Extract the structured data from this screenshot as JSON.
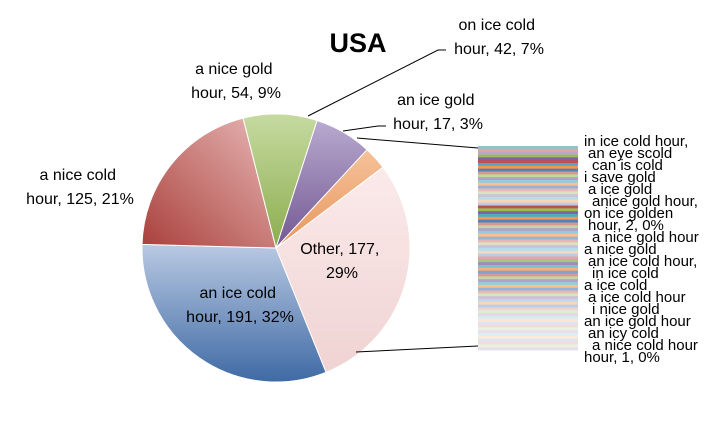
{
  "chart_data": {
    "type": "pie",
    "title": "USA",
    "slices": [
      {
        "label": "Other",
        "value": 177,
        "percent": "29%",
        "color": "#f3d9d9"
      },
      {
        "label": "an ice cold hour",
        "value": 191,
        "percent": "32%",
        "color": "#5b7fb5"
      },
      {
        "label": "a nice cold hour",
        "value": 125,
        "percent": "21%",
        "color": "#b85450"
      },
      {
        "label": "a nice gold hour",
        "value": 54,
        "percent": "9%",
        "color": "#9bbb59"
      },
      {
        "label": "on ice cold hour",
        "value": 42,
        "percent": "7%",
        "color": "#8064a2"
      },
      {
        "label": "an ice gold hour",
        "value": 17,
        "percent": "3%",
        "color": "#f79646"
      }
    ],
    "labels": {
      "other": [
        "Other, 177,",
        "29%"
      ],
      "an_ice_cold": [
        "an ice cold",
        "hour, 191, 32%"
      ],
      "a_nice_cold": [
        "a nice cold",
        "hour, 125, 21%"
      ],
      "a_nice_gold": [
        "a nice gold",
        "hour, 54, 9%"
      ],
      "on_ice_cold": [
        "on ice cold",
        "hour, 42, 7%"
      ],
      "an_ice_gold": [
        "an ice gold",
        "hour, 17, 3%"
      ]
    },
    "breakout_labels": [
      "in ice cold hour,",
      "an eye scold",
      "can is cold",
      "i save gold",
      "a ice gold",
      "anice gold hour,",
      "on ice golden",
      "hour, 2, 0%",
      "a nice gold hour",
      "a nice gold",
      "an ice cold hour,",
      "in ice cold",
      "a ice cold",
      "a ice cold hour",
      "i nice gold",
      "an ice gold hour",
      "an icy cold",
      "a nice cold hour",
      "hour, 1, 0%"
    ],
    "breakout_stripes": [
      "#8fc3cf",
      "#e6a3a3",
      "#b9a8cc",
      "#9bbb59",
      "#8064a2",
      "#c0504d",
      "#4bacc6",
      "#f79646",
      "#4f81bd",
      "#d99694",
      "#c3d69b",
      "#b3a2c7",
      "#93cddd",
      "#fac090",
      "#95b3d7",
      "#e6b9b8",
      "#d7e4bd",
      "#ccc1da",
      "#b7dee8",
      "#fcd5b5",
      "#b9cde5",
      "#c0504d",
      "#9bbb59",
      "#8064a2",
      "#4bacc6",
      "#f79646",
      "#4f81bd",
      "#d99694",
      "#c3d69b",
      "#b3a2c7",
      "#93cddd",
      "#fac090",
      "#95b3d7",
      "#e6b9b8",
      "#d7e4bd",
      "#ccc1da",
      "#b7dee8",
      "#fcd5b5",
      "#b9cde5",
      "#e6a3a3",
      "#a9c47f",
      "#9f8bbf",
      "#7fc0d4",
      "#f9ad78",
      "#7ea3d2",
      "#d99694",
      "#c3d69b",
      "#b3a2c7",
      "#93cddd",
      "#fac090",
      "#95b3d7",
      "#e6b9b8",
      "#d7e4bd",
      "#ccc1da",
      "#b7dee8",
      "#fcd5b5",
      "#b9cde5",
      "#efd3d2",
      "#e3eccf",
      "#e0d9ea",
      "#d5ebf1",
      "#fde6d3",
      "#dce6f2",
      "#f2dcdb",
      "#ebf1de",
      "#e5e0ec",
      "#dbeef4",
      "#fdeada",
      "#dce6f2",
      "#f2dcdb",
      "#ebf1de",
      "#e5e0ec"
    ]
  }
}
